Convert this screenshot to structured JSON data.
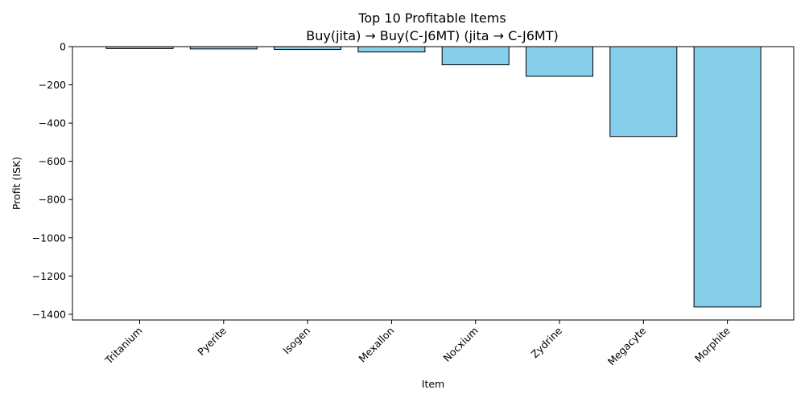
{
  "chart_data": {
    "type": "bar",
    "title": "Top 10 Profitable Items",
    "subtitle": "Buy(jita) → Buy(C-J6MT) (jita → C-J6MT)",
    "xlabel": "Item",
    "ylabel": "Profit (ISK)",
    "categories": [
      "Tritanium",
      "Pyerite",
      "Isogen",
      "Mexallon",
      "Nocxium",
      "Zydrine",
      "Megacyte",
      "Morphite"
    ],
    "values": [
      -10,
      -12,
      -15,
      -28,
      -95,
      -155,
      -470,
      -1362
    ],
    "ylim": [
      -1430,
      0
    ],
    "yticks": [
      0,
      -200,
      -400,
      -600,
      -800,
      -1000,
      -1200,
      -1400
    ],
    "ytick_labels": [
      "0",
      "−200",
      "−400",
      "−600",
      "−800",
      "−1000",
      "−1200",
      "−1400"
    ],
    "bar_color": "#87ceeb",
    "bar_edge_color": "#000000",
    "grid": false,
    "legend": false
  }
}
